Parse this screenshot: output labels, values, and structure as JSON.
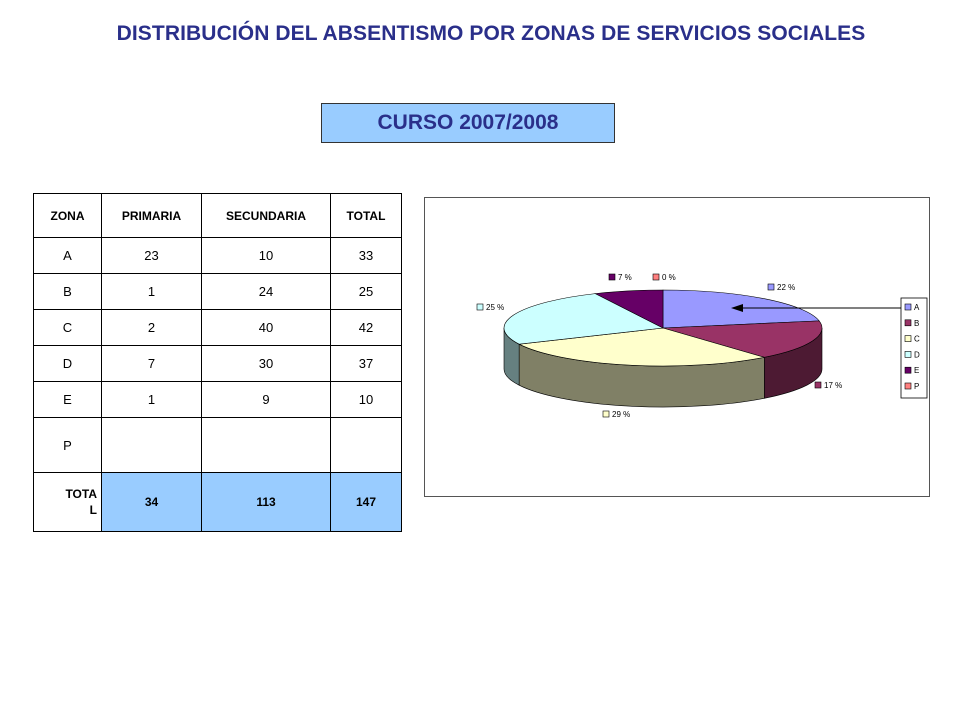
{
  "title": "DISTRIBUCIÓN DEL ABSENTISMO POR ZONAS DE SERVICIOS SOCIALES",
  "course": "CURSO 2007/2008",
  "table": {
    "headers": [
      "ZONA",
      "PRIMARIA",
      "SECUNDARIA",
      "TOTAL"
    ],
    "rows": [
      {
        "zona": "A",
        "primaria": "23",
        "secundaria": "10",
        "total": "33"
      },
      {
        "zona": "B",
        "primaria": "1",
        "secundaria": "24",
        "total": "25"
      },
      {
        "zona": "C",
        "primaria": "2",
        "secundaria": "40",
        "total": "42"
      },
      {
        "zona": "D",
        "primaria": "7",
        "secundaria": "30",
        "total": "37"
      },
      {
        "zona": "E",
        "primaria": "1",
        "secundaria": "9",
        "total": "10"
      },
      {
        "zona": "P",
        "primaria": "",
        "secundaria": "",
        "total": ""
      }
    ],
    "total_row": {
      "label": "TOTAL",
      "primaria": "34",
      "secundaria": "113",
      "total": "147"
    }
  },
  "chart_data": {
    "type": "pie",
    "style": "3d",
    "categories": [
      "A",
      "B",
      "C",
      "D",
      "E",
      "P"
    ],
    "values": [
      22,
      17,
      29,
      25,
      7,
      0
    ],
    "labels": [
      "22 %",
      "17 %",
      "29 %",
      "25 %",
      "7 %",
      "0 %"
    ],
    "colors": [
      "#9999ff",
      "#993366",
      "#ffffcc",
      "#ccffff",
      "#660066",
      "#ff8080"
    ],
    "legend": "right"
  }
}
